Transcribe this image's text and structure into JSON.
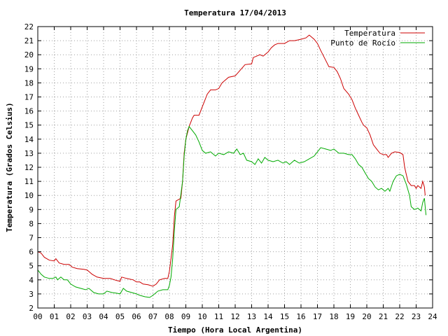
{
  "chart_data": {
    "type": "line",
    "title": "Temperatura 17/04/2013",
    "xlabel": "Tiempo (Hora Local Argentina)",
    "ylabel": "Temperatura (Grados Celsius)",
    "xlim": [
      0,
      24
    ],
    "ylim": [
      2,
      22
    ],
    "x_ticks": [
      "00",
      "01",
      "02",
      "03",
      "04",
      "05",
      "06",
      "07",
      "08",
      "09",
      "10",
      "11",
      "12",
      "13",
      "14",
      "15",
      "16",
      "17",
      "18",
      "19",
      "20",
      "21",
      "22",
      "23",
      "24"
    ],
    "y_ticks": [
      "2",
      "3",
      "4",
      "5",
      "6",
      "7",
      "8",
      "9",
      "10",
      "11",
      "12",
      "13",
      "14",
      "15",
      "16",
      "17",
      "18",
      "19",
      "20",
      "21",
      "22"
    ],
    "grid": true,
    "legend_position": "top-right",
    "series": [
      {
        "name": "Temperatura",
        "color": "#cc0000",
        "points": [
          [
            0.0,
            6.0
          ],
          [
            0.2,
            5.9
          ],
          [
            0.4,
            5.6
          ],
          [
            0.7,
            5.4
          ],
          [
            1.0,
            5.35
          ],
          [
            1.1,
            5.5
          ],
          [
            1.3,
            5.2
          ],
          [
            1.6,
            5.1
          ],
          [
            1.9,
            5.1
          ],
          [
            2.1,
            4.9
          ],
          [
            2.4,
            4.8
          ],
          [
            2.8,
            4.75
          ],
          [
            3.0,
            4.7
          ],
          [
            3.3,
            4.4
          ],
          [
            3.6,
            4.2
          ],
          [
            4.0,
            4.1
          ],
          [
            4.4,
            4.1
          ],
          [
            4.8,
            3.95
          ],
          [
            5.0,
            3.9
          ],
          [
            5.1,
            4.2
          ],
          [
            5.4,
            4.1
          ],
          [
            5.8,
            4.0
          ],
          [
            6.0,
            3.85
          ],
          [
            6.2,
            3.85
          ],
          [
            6.4,
            3.7
          ],
          [
            6.7,
            3.65
          ],
          [
            7.0,
            3.55
          ],
          [
            7.2,
            3.7
          ],
          [
            7.4,
            4.0
          ],
          [
            7.7,
            4.1
          ],
          [
            7.9,
            4.1
          ],
          [
            8.0,
            4.6
          ],
          [
            8.1,
            5.5
          ],
          [
            8.2,
            6.5
          ],
          [
            8.3,
            8.5
          ],
          [
            8.4,
            9.6
          ],
          [
            8.7,
            9.8
          ],
          [
            8.8,
            11.0
          ],
          [
            8.9,
            13.0
          ],
          [
            9.0,
            14.0
          ],
          [
            9.2,
            14.9
          ],
          [
            9.4,
            15.5
          ],
          [
            9.5,
            15.7
          ],
          [
            9.8,
            15.7
          ],
          [
            10.0,
            16.3
          ],
          [
            10.3,
            17.2
          ],
          [
            10.5,
            17.5
          ],
          [
            10.8,
            17.5
          ],
          [
            11.0,
            17.6
          ],
          [
            11.2,
            18.0
          ],
          [
            11.4,
            18.2
          ],
          [
            11.6,
            18.4
          ],
          [
            12.0,
            18.5
          ],
          [
            12.3,
            18.9
          ],
          [
            12.6,
            19.3
          ],
          [
            13.0,
            19.35
          ],
          [
            13.1,
            19.8
          ],
          [
            13.3,
            19.9
          ],
          [
            13.5,
            20.0
          ],
          [
            13.7,
            19.9
          ],
          [
            14.0,
            20.2
          ],
          [
            14.2,
            20.5
          ],
          [
            14.4,
            20.7
          ],
          [
            14.6,
            20.8
          ],
          [
            15.0,
            20.8
          ],
          [
            15.3,
            21.0
          ],
          [
            15.6,
            21.0
          ],
          [
            16.0,
            21.1
          ],
          [
            16.3,
            21.2
          ],
          [
            16.5,
            21.4
          ],
          [
            16.8,
            21.1
          ],
          [
            17.0,
            20.8
          ],
          [
            17.2,
            20.3
          ],
          [
            17.5,
            19.6
          ],
          [
            17.7,
            19.15
          ],
          [
            18.0,
            19.1
          ],
          [
            18.2,
            18.8
          ],
          [
            18.4,
            18.3
          ],
          [
            18.6,
            17.6
          ],
          [
            18.9,
            17.2
          ],
          [
            19.1,
            16.8
          ],
          [
            19.3,
            16.2
          ],
          [
            19.5,
            15.7
          ],
          [
            19.7,
            15.2
          ],
          [
            19.8,
            15.0
          ],
          [
            20.0,
            14.8
          ],
          [
            20.2,
            14.3
          ],
          [
            20.4,
            13.6
          ],
          [
            20.6,
            13.3
          ],
          [
            20.8,
            13.0
          ],
          [
            21.0,
            12.9
          ],
          [
            21.2,
            12.9
          ],
          [
            21.3,
            12.7
          ],
          [
            21.5,
            13.0
          ],
          [
            21.7,
            13.1
          ],
          [
            22.0,
            13.05
          ],
          [
            22.2,
            12.9
          ],
          [
            22.3,
            12.0
          ],
          [
            22.4,
            11.5
          ],
          [
            22.5,
            11.0
          ],
          [
            22.7,
            10.7
          ],
          [
            22.9,
            10.7
          ],
          [
            23.0,
            10.5
          ],
          [
            23.1,
            10.7
          ],
          [
            23.3,
            10.5
          ],
          [
            23.4,
            11.0
          ],
          [
            23.5,
            10.6
          ],
          [
            23.55,
            10.0
          ]
        ]
      },
      {
        "name": "Punto de Rocío",
        "color": "#00aa00",
        "points": [
          [
            0.0,
            4.7
          ],
          [
            0.2,
            4.4
          ],
          [
            0.4,
            4.2
          ],
          [
            0.7,
            4.1
          ],
          [
            0.9,
            4.1
          ],
          [
            1.1,
            4.2
          ],
          [
            1.2,
            4.0
          ],
          [
            1.4,
            4.2
          ],
          [
            1.6,
            4.0
          ],
          [
            1.8,
            4.0
          ],
          [
            2.0,
            3.7
          ],
          [
            2.3,
            3.5
          ],
          [
            2.6,
            3.4
          ],
          [
            2.9,
            3.3
          ],
          [
            3.1,
            3.4
          ],
          [
            3.4,
            3.1
          ],
          [
            3.7,
            3.0
          ],
          [
            4.0,
            3.0
          ],
          [
            4.2,
            3.2
          ],
          [
            4.5,
            3.1
          ],
          [
            4.8,
            3.05
          ],
          [
            5.0,
            3.0
          ],
          [
            5.2,
            3.4
          ],
          [
            5.4,
            3.2
          ],
          [
            5.7,
            3.1
          ],
          [
            6.0,
            3.0
          ],
          [
            6.2,
            2.9
          ],
          [
            6.5,
            2.8
          ],
          [
            6.8,
            2.75
          ],
          [
            7.0,
            2.9
          ],
          [
            7.3,
            3.2
          ],
          [
            7.6,
            3.3
          ],
          [
            7.9,
            3.3
          ],
          [
            8.0,
            3.6
          ],
          [
            8.1,
            4.2
          ],
          [
            8.2,
            5.5
          ],
          [
            8.3,
            7.5
          ],
          [
            8.4,
            9.0
          ],
          [
            8.6,
            9.2
          ],
          [
            8.8,
            11.0
          ],
          [
            8.9,
            12.8
          ],
          [
            9.0,
            14.0
          ],
          [
            9.1,
            14.6
          ],
          [
            9.2,
            14.9
          ],
          [
            9.4,
            14.6
          ],
          [
            9.6,
            14.3
          ],
          [
            9.8,
            13.8
          ],
          [
            10.0,
            13.2
          ],
          [
            10.2,
            13.0
          ],
          [
            10.5,
            13.1
          ],
          [
            10.8,
            12.8
          ],
          [
            11.0,
            13.0
          ],
          [
            11.3,
            12.9
          ],
          [
            11.6,
            13.1
          ],
          [
            11.9,
            13.0
          ],
          [
            12.1,
            13.3
          ],
          [
            12.3,
            12.9
          ],
          [
            12.5,
            13.0
          ],
          [
            12.7,
            12.5
          ],
          [
            13.0,
            12.4
          ],
          [
            13.2,
            12.2
          ],
          [
            13.4,
            12.6
          ],
          [
            13.6,
            12.3
          ],
          [
            13.8,
            12.7
          ],
          [
            14.0,
            12.5
          ],
          [
            14.3,
            12.4
          ],
          [
            14.6,
            12.5
          ],
          [
            14.9,
            12.3
          ],
          [
            15.1,
            12.4
          ],
          [
            15.3,
            12.2
          ],
          [
            15.6,
            12.5
          ],
          [
            15.9,
            12.3
          ],
          [
            16.2,
            12.4
          ],
          [
            16.5,
            12.6
          ],
          [
            16.8,
            12.8
          ],
          [
            17.0,
            13.1
          ],
          [
            17.2,
            13.4
          ],
          [
            17.5,
            13.3
          ],
          [
            17.8,
            13.2
          ],
          [
            18.0,
            13.3
          ],
          [
            18.3,
            13.0
          ],
          [
            18.6,
            13.0
          ],
          [
            18.9,
            12.9
          ],
          [
            19.1,
            12.9
          ],
          [
            19.3,
            12.6
          ],
          [
            19.5,
            12.2
          ],
          [
            19.7,
            12.0
          ],
          [
            19.9,
            11.6
          ],
          [
            20.1,
            11.2
          ],
          [
            20.3,
            11.0
          ],
          [
            20.5,
            10.6
          ],
          [
            20.7,
            10.4
          ],
          [
            20.9,
            10.5
          ],
          [
            21.1,
            10.3
          ],
          [
            21.3,
            10.5
          ],
          [
            21.4,
            10.3
          ],
          [
            21.6,
            11.0
          ],
          [
            21.8,
            11.4
          ],
          [
            22.0,
            11.5
          ],
          [
            22.2,
            11.4
          ],
          [
            22.4,
            10.8
          ],
          [
            22.6,
            10.0
          ],
          [
            22.7,
            9.2
          ],
          [
            22.9,
            9.0
          ],
          [
            23.1,
            9.1
          ],
          [
            23.3,
            8.9
          ],
          [
            23.4,
            9.5
          ],
          [
            23.5,
            9.8
          ],
          [
            23.55,
            9.2
          ],
          [
            23.6,
            8.6
          ]
        ]
      }
    ]
  }
}
